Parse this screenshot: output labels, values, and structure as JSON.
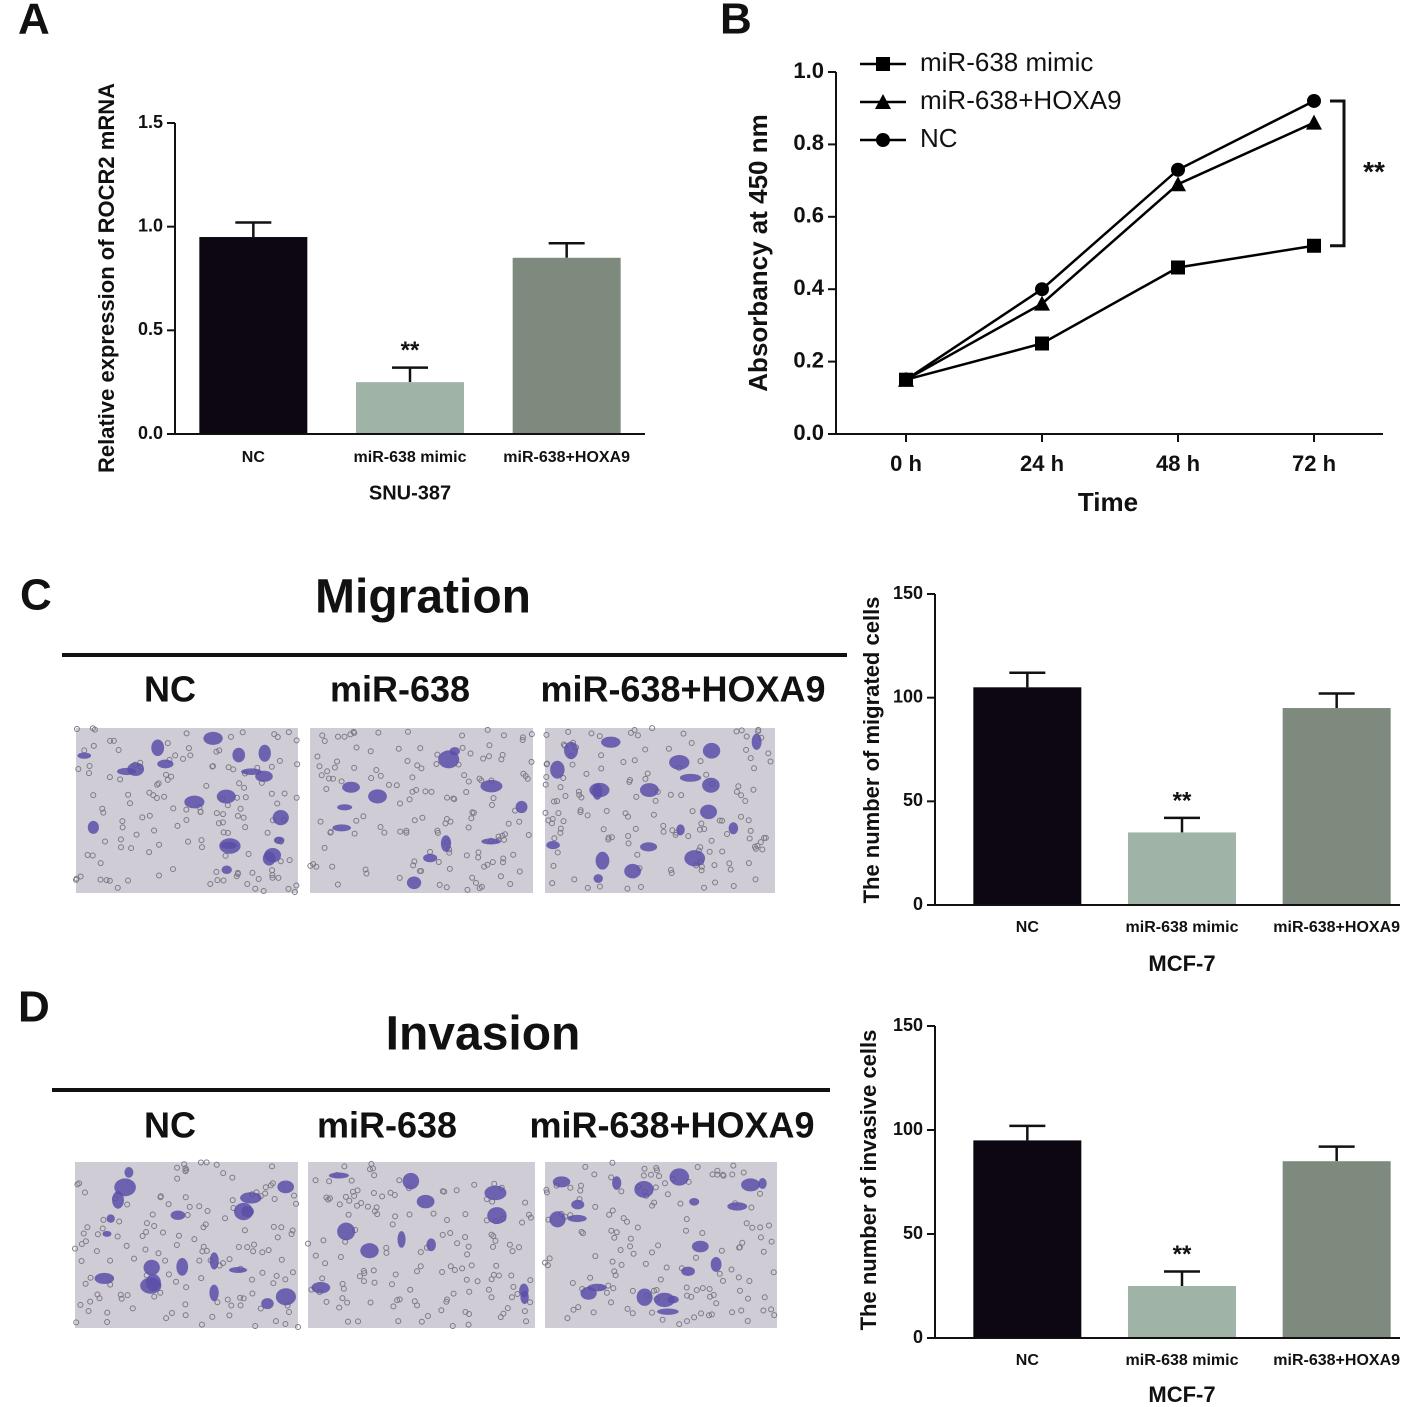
{
  "chart_data": [
    {
      "type": "bar",
      "panel": "A",
      "xlabel": "SNU-387",
      "ylabel": "Relative expression of ROCR2 mRNA",
      "categories": [
        "NC",
        "miR-638 mimic",
        "miR-638+HOXA9"
      ],
      "values": [
        0.95,
        0.25,
        0.85
      ],
      "errors": [
        0.07,
        0.07,
        0.07
      ],
      "significance": [
        null,
        "**",
        null
      ],
      "colors": [
        "#0c0710",
        "#9fb3a6",
        "#7e8a7e"
      ],
      "ylim": [
        0,
        1.5
      ],
      "yticks": [
        {
          "value": 0,
          "label": "0.0"
        },
        0.5,
        {
          "value": 1,
          "label": "1.0"
        },
        1.5
      ]
    },
    {
      "type": "line",
      "panel": "B",
      "xlabel": "Time",
      "ylabel": "Absorbancy at 450 nm",
      "categories": [
        "0 h",
        "24 h",
        "48 h",
        "72 h"
      ],
      "series": [
        {
          "name": "miR-638 mimic",
          "color": "#000000",
          "marker": "square",
          "values": [
            0.15,
            0.25,
            0.46,
            0.52
          ]
        },
        {
          "name": "miR-638+HOXA9",
          "color": "#000000",
          "marker": "triangle",
          "values": [
            0.15,
            0.36,
            0.69,
            0.86
          ]
        },
        {
          "name": "NC",
          "color": "#000000",
          "marker": "circle",
          "values": [
            0.15,
            0.4,
            0.73,
            0.92
          ]
        }
      ],
      "annotation": "**",
      "ylim": [
        0,
        1.0
      ],
      "yticks": [
        {
          "value": 0,
          "label": "0.0"
        },
        0.2,
        0.4,
        0.6,
        0.8,
        {
          "value": 1,
          "label": "1.0"
        }
      ]
    },
    {
      "type": "bar",
      "xlabel": "MCF-7",
      "ylabel": "The number of migrated cells",
      "categories": [
        "NC",
        "miR-638 mimic",
        "miR-638+HOXA9"
      ],
      "values": [
        105,
        35,
        95
      ],
      "errors": [
        7,
        7,
        7
      ],
      "significance": [
        null,
        "**",
        null
      ],
      "colors": [
        "#0c0710",
        "#9fb3a6",
        "#7e8a7e"
      ],
      "ylim": [
        0,
        150
      ],
      "yticks": [
        0,
        50,
        100,
        150
      ]
    },
    {
      "type": "bar",
      "xlabel": "MCF-7",
      "ylabel": "The number of invasive cells",
      "categories": [
        "NC",
        "miR-638 mimic",
        "miR-638+HOXA9"
      ],
      "values": [
        95,
        25,
        85
      ],
      "errors": [
        7,
        7,
        7
      ],
      "significance": [
        null,
        "**",
        null
      ],
      "colors": [
        "#0c0710",
        "#9fb3a6",
        "#7e8a7e"
      ],
      "ylim": [
        0,
        150
      ],
      "yticks": [
        0,
        50,
        100,
        150
      ]
    }
  ],
  "image_panels": [
    {
      "panel": "C",
      "title": "Migration",
      "labels": [
        "NC",
        "miR-638",
        "miR-638+HOXA9"
      ]
    },
    {
      "panel": "D",
      "title": "Invasion",
      "labels": [
        "NC",
        "miR-638",
        "miR-638+HOXA9"
      ]
    }
  ]
}
